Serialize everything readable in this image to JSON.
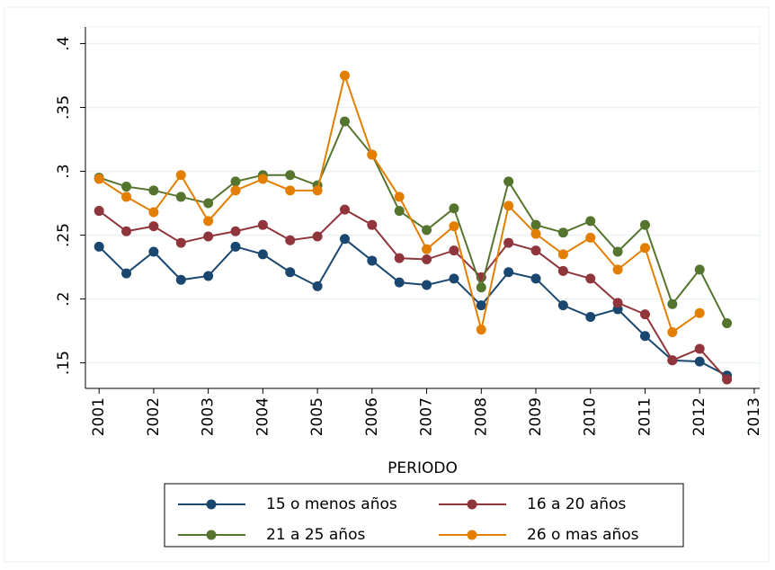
{
  "chart_data": {
    "type": "line",
    "x_label": "PERIODO",
    "x": [
      2001,
      2001.5,
      2002,
      2002.5,
      2003,
      2003.5,
      2004,
      2004.5,
      2005,
      2005.5,
      2006,
      2006.5,
      2007,
      2007.5,
      2008,
      2008.5,
      2009,
      2009.5,
      2010,
      2010.5,
      2011,
      2011.5,
      2012,
      2012.5
    ],
    "xlim": [
      2000.75,
      2013.1
    ],
    "xticks": [
      2001,
      2002,
      2003,
      2004,
      2005,
      2006,
      2007,
      2008,
      2009,
      2010,
      2011,
      2012,
      2013
    ],
    "ylim": [
      0.13,
      0.413
    ],
    "yticks": [
      {
        "value": 0.15,
        "label": ".15"
      },
      {
        "value": 0.2,
        "label": ".2"
      },
      {
        "value": 0.25,
        "label": ".25"
      },
      {
        "value": 0.3,
        "label": ".3"
      },
      {
        "value": 0.35,
        "label": ".35"
      },
      {
        "value": 0.4,
        "label": ".4"
      }
    ],
    "grid": true,
    "legend": "bottom",
    "series": [
      {
        "name": "15 o menos años",
        "color": "#1a476f",
        "values": [
          0.241,
          0.22,
          0.237,
          0.215,
          0.218,
          0.241,
          0.235,
          0.221,
          0.21,
          0.247,
          0.23,
          0.213,
          0.211,
          0.216,
          0.195,
          0.221,
          0.216,
          0.195,
          0.186,
          0.192,
          0.171,
          0.152,
          0.151,
          0.14
        ]
      },
      {
        "name": "16 a 20 años",
        "color": "#90353b",
        "values": [
          0.269,
          0.253,
          0.257,
          0.244,
          0.249,
          0.253,
          0.258,
          0.246,
          0.249,
          0.27,
          0.258,
          0.232,
          0.231,
          0.238,
          0.217,
          0.244,
          0.238,
          0.222,
          0.216,
          0.197,
          0.188,
          0.152,
          0.161,
          0.137
        ]
      },
      {
        "name": "21 a 25 años",
        "color": "#55752f",
        "values": [
          0.295,
          0.288,
          0.285,
          0.28,
          0.275,
          0.292,
          0.297,
          0.297,
          0.289,
          0.339,
          0.313,
          0.269,
          0.254,
          0.271,
          0.209,
          0.292,
          0.258,
          0.252,
          0.261,
          0.237,
          0.258,
          0.196,
          0.223,
          0.181
        ]
      },
      {
        "name": "26 o mas años",
        "color": "#e37e00",
        "values": [
          0.294,
          0.28,
          0.268,
          0.297,
          0.261,
          0.285,
          0.294,
          0.285,
          0.285,
          0.375,
          0.313,
          0.28,
          0.239,
          0.257,
          0.176,
          0.273,
          0.251,
          0.235,
          0.248,
          0.223,
          0.24,
          0.174,
          0.189,
          null
        ]
      }
    ]
  }
}
